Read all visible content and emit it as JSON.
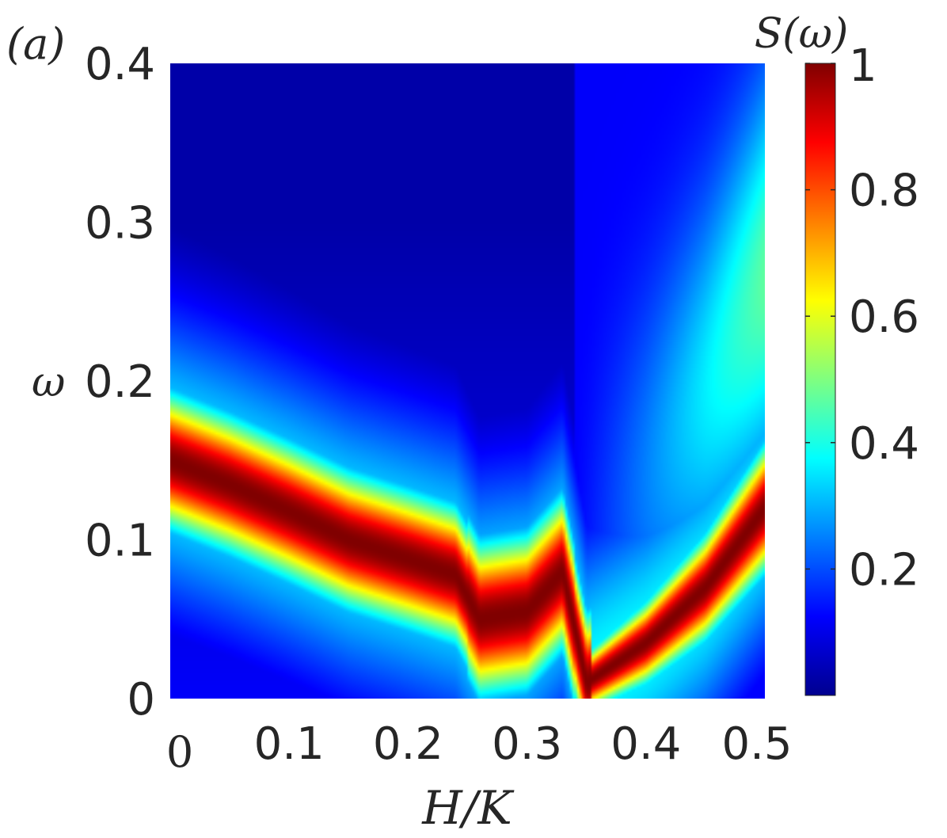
{
  "panel_label": "(a)",
  "colorbar": {
    "title": "S(ω)",
    "ticks": [
      {
        "value": 0.2,
        "label": "0.2"
      },
      {
        "value": 0.4,
        "label": "0.4"
      },
      {
        "value": 0.6,
        "label": "0.6"
      },
      {
        "value": 0.8,
        "label": "0.8"
      },
      {
        "value": 1.0,
        "label": "1"
      }
    ],
    "range": [
      0,
      1
    ],
    "colormap": "jet"
  },
  "chart_data": {
    "type": "heatmap",
    "title": "",
    "xlabel": "H/K",
    "ylabel": "ω",
    "xlim": [
      0,
      0.5
    ],
    "ylim": [
      0,
      0.4
    ],
    "x_ticks": [
      {
        "value": 0,
        "label": "0"
      },
      {
        "value": 0.1,
        "label": "0.1"
      },
      {
        "value": 0.2,
        "label": "0.2"
      },
      {
        "value": 0.3,
        "label": "0.3"
      },
      {
        "value": 0.4,
        "label": "0.4"
      },
      {
        "value": 0.5,
        "label": "0.5"
      }
    ],
    "y_ticks": [
      {
        "value": 0,
        "label": "0"
      },
      {
        "value": 0.1,
        "label": "0.1"
      },
      {
        "value": 0.2,
        "label": "0.2"
      },
      {
        "value": 0.3,
        "label": "0.3"
      },
      {
        "value": 0.4,
        "label": "0.4"
      }
    ],
    "intensity_ridge": [
      {
        "H": 0.0,
        "omega": 0.15
      },
      {
        "H": 0.05,
        "omega": 0.135
      },
      {
        "H": 0.1,
        "omega": 0.118
      },
      {
        "H": 0.15,
        "omega": 0.1
      },
      {
        "H": 0.2,
        "omega": 0.088
      },
      {
        "H": 0.24,
        "omega": 0.078
      },
      {
        "H": 0.26,
        "omega": 0.05
      },
      {
        "H": 0.3,
        "omega": 0.055
      },
      {
        "H": 0.33,
        "omega": 0.08
      },
      {
        "H": 0.35,
        "omega": 0.01
      },
      {
        "H": 0.4,
        "omega": 0.035
      },
      {
        "H": 0.45,
        "omega": 0.07
      },
      {
        "H": 0.5,
        "omega": 0.12
      }
    ],
    "grid": false
  }
}
